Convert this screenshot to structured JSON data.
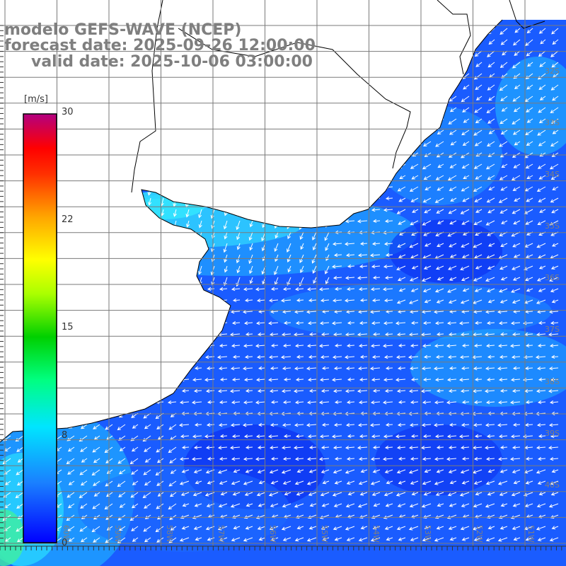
{
  "title": {
    "line1": "modelo GEFS-WAVE (NCEP)",
    "line2": "forecast date: 2025-09-26 12:00:00",
    "line3": "valid date: 2025-10-06 03:00:00"
  },
  "colorbar": {
    "unit": "[m/s]",
    "ticks": [
      "30",
      "22",
      "15",
      "8",
      "0"
    ],
    "tick_values": [
      30,
      22,
      15,
      8,
      0
    ],
    "range": [
      0,
      30
    ],
    "colors": [
      "#0000ff",
      "#1a80ff",
      "#00e5ff",
      "#00ff80",
      "#00d000",
      "#aaff00",
      "#ffff00",
      "#ffa500",
      "#ff3000",
      "#ff0000",
      "#cc0066",
      "#b30080"
    ]
  },
  "lat_labels": [
    "32S",
    "33S",
    "34S",
    "35S",
    "36S",
    "37S",
    "38S",
    "39S",
    "40S"
  ],
  "lon_labels": [
    "60W",
    "59W",
    "58W",
    "57W",
    "56W",
    "55W",
    "54W",
    "53W",
    "52W",
    "51W"
  ],
  "colors": {
    "land": "#ffffff",
    "coast": "#000000",
    "grid": "#7a7a7a",
    "arrow": "#ffffff",
    "label": "#7f7f7f"
  }
}
